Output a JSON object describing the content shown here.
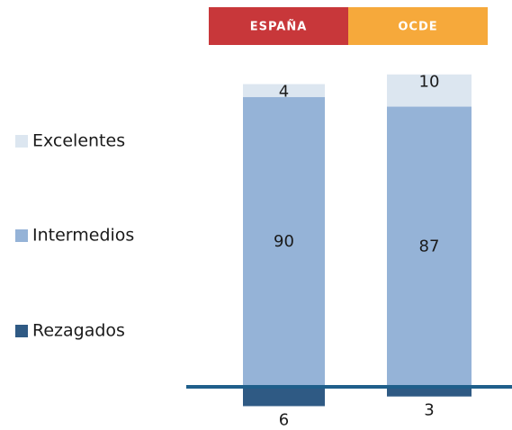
{
  "chart_data": {
    "type": "stacked_bar",
    "categories": [
      "ESPAÑA",
      "OCDE"
    ],
    "category_colors": [
      "#c8373a",
      "#f6a93b"
    ],
    "series": [
      {
        "name": "Excelentes",
        "color": "#dce6f0",
        "values": [
          4,
          10
        ]
      },
      {
        "name": "Intermedios",
        "color": "#95b3d7",
        "values": [
          90,
          87
        ]
      },
      {
        "name": "Rezagados",
        "color": "#2f5a84",
        "values": [
          -6,
          -3
        ],
        "value_labels": [
          "6",
          "3"
        ]
      }
    ],
    "baseline_color": "#1f5f8b"
  }
}
